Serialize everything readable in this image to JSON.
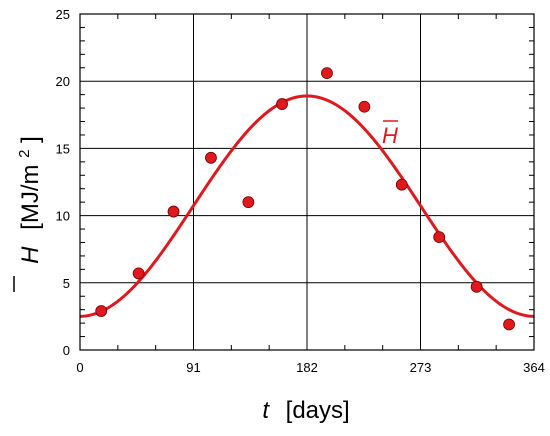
{
  "chart_data": {
    "type": "scatter",
    "xlabel_symbol": "t",
    "xlabel_unit": "[days]",
    "ylabel_symbol": "H",
    "ylabel_unit": "[MJ/m",
    "ylabel_unit_sup": "2",
    "ylabel_unit_close": "]",
    "xlim": [
      0,
      364
    ],
    "ylim": [
      0,
      25
    ],
    "x_ticks": [
      0,
      91,
      182,
      273,
      364
    ],
    "y_ticks": [
      0,
      5,
      10,
      15,
      20,
      25
    ],
    "grid": true,
    "colors": {
      "series": "#e0191e",
      "grid": "#000000"
    },
    "series": [
      {
        "type": "scatter",
        "x": [
          17,
          47,
          75,
          105,
          135,
          162,
          198,
          228,
          258,
          288,
          318,
          344
        ],
        "y": [
          2.9,
          5.7,
          10.3,
          14.3,
          11.0,
          18.3,
          20.6,
          18.1,
          12.3,
          8.4,
          4.7,
          1.9
        ]
      },
      {
        "type": "line",
        "name": "H",
        "model": {
          "mean": 10.7,
          "amplitude": 8.2,
          "period": 365,
          "peak_day": 182
        }
      }
    ]
  }
}
